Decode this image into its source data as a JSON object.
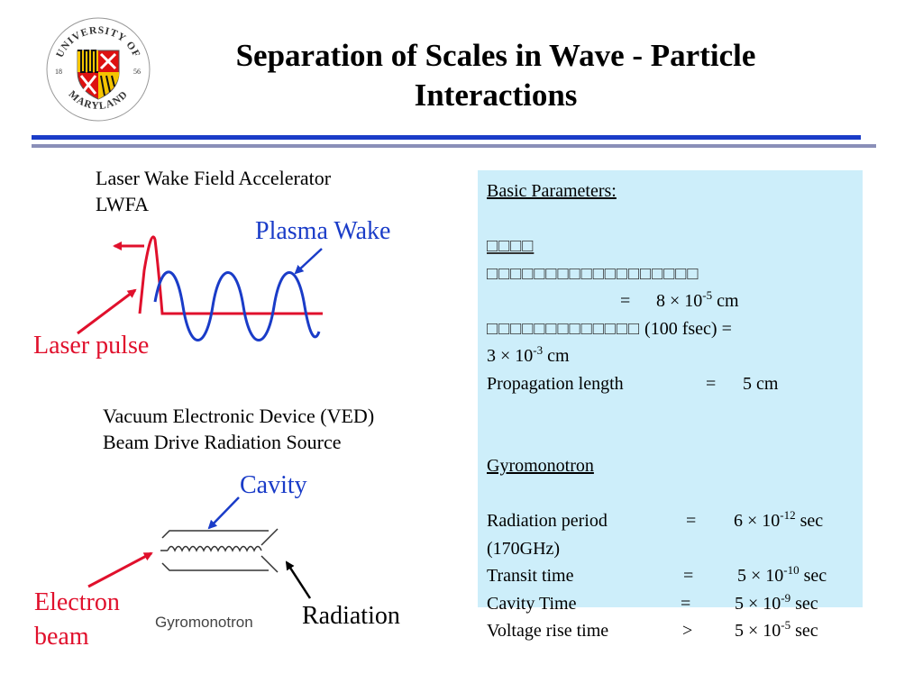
{
  "slide": {
    "title_line1": "Separation of Scales in Wave - Particle",
    "title_line2": "Interactions"
  },
  "logo": {
    "top_text": "UNIVERSITY OF",
    "bottom_text": "MARYLAND",
    "year_left": "18",
    "year_right": "56"
  },
  "lwfa": {
    "caption_line1": "Laser Wake Field Accelerator",
    "caption_line2": "LWFA",
    "plasma_wake_label": "Plasma Wake",
    "laser_pulse_label": "Laser pulse"
  },
  "ved": {
    "caption_line1": "Vacuum Electronic Device (VED)",
    "caption_line2": "Beam Drive Radiation Source",
    "cavity_label": "Cavity",
    "electron_beam_line1": "Electron",
    "electron_beam_line2": "beam",
    "radiation_label": "Radiation",
    "device_caption": "Gyromonotron"
  },
  "params": {
    "heading": "Basic Parameters:",
    "garbled_heading": "□□□□",
    "garbled_line": "□□□□□□□□□□□□□□□□□□",
    "wavelength_eq": "=",
    "wavelength_mant": "8 × 10",
    "wavelength_exp": "-5",
    "wavelength_unit": " cm",
    "pulse_garbled": "□□□□□□□□□□□□□",
    "pulse_value_a": " (100 fsec)  =",
    "pulse_mant": "3 × 10",
    "pulse_exp": "-3",
    "pulse_unit": " cm",
    "prop_label": "Propagation length",
    "prop_eq": "=",
    "prop_value": "5 cm",
    "gyro_heading": "Gyromonotron",
    "rad_label": "Radiation period",
    "rad_eq": "=",
    "rad_mant": "6 × 10",
    "rad_exp": "-12",
    "rad_unit": " sec",
    "rad_freq": "(170GHz)",
    "transit_label": "Transit time",
    "transit_eq": "=",
    "transit_mant": "5 × 10",
    "transit_exp": "-10",
    "transit_unit": " sec",
    "cavity_label": "Cavity Time",
    "cavity_eq": "=",
    "cavity_mant": "5 × 10",
    "cavity_exp": "-9",
    "cavity_unit": " sec",
    "volt_label": "Voltage rise time",
    "volt_eq": ">",
    "volt_mant": "5 × 10",
    "volt_exp": "-5",
    "volt_unit": " sec"
  },
  "colors": {
    "blue": "#1a3cc8",
    "red": "#e0102c",
    "box_bg": "#cdeefa"
  }
}
